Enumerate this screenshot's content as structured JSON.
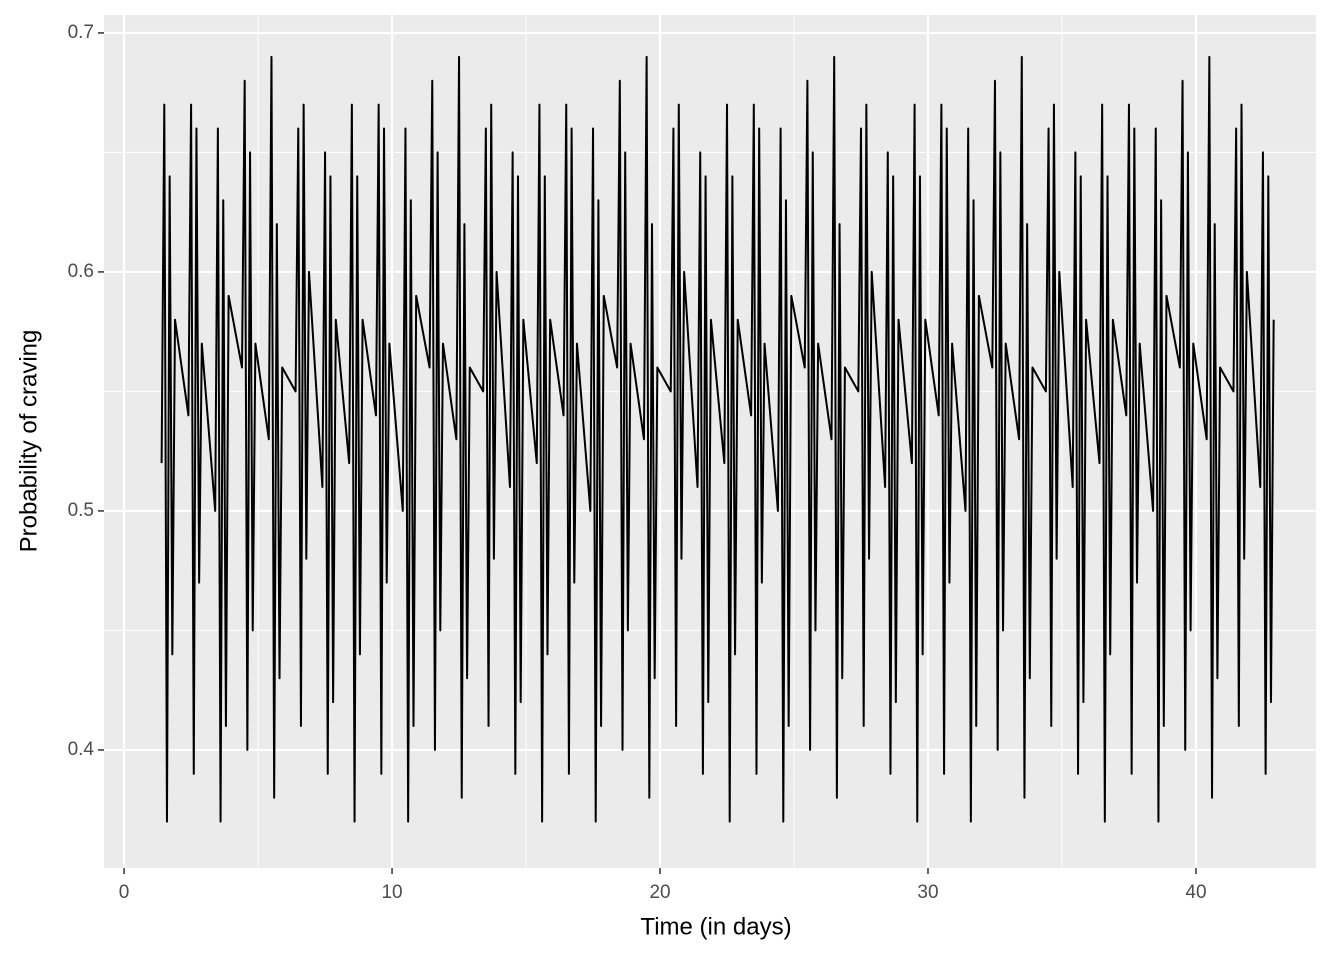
{
  "chart_data": {
    "type": "line",
    "x_label": "Time (in days)",
    "y_label": "Probability of craving",
    "color": "#000000",
    "grid": true,
    "xlim": [
      -0.75,
      44.48
    ],
    "ylim": [
      0.3506,
      0.7075
    ],
    "xticks": [
      0,
      10,
      20,
      30,
      40
    ],
    "xminor": [
      5,
      15,
      25,
      35
    ],
    "yticks": [
      0.4,
      0.5,
      0.6,
      0.7
    ],
    "yminor": [
      0.45,
      0.55,
      0.65
    ],
    "x": [
      1.4,
      1.5,
      1.6,
      1.7,
      1.8,
      1.9,
      2.4,
      2.5,
      2.6,
      2.7,
      2.8,
      2.9,
      3.4,
      3.5,
      3.6,
      3.7,
      3.8,
      3.9,
      4.4,
      4.5,
      4.6,
      4.7,
      4.8,
      4.9,
      5.4,
      5.5,
      5.6,
      5.7,
      5.8,
      5.9,
      6.4,
      6.5,
      6.6,
      6.7,
      6.8,
      6.9,
      7.4,
      7.5,
      7.6,
      7.7,
      7.8,
      7.9,
      8.4,
      8.5,
      8.6,
      8.7,
      8.8,
      8.9,
      9.4,
      9.5,
      9.6,
      9.7,
      9.8,
      9.9,
      10.4,
      10.5,
      10.6,
      10.7,
      10.8,
      10.9,
      11.4,
      11.5,
      11.6,
      11.7,
      11.8,
      11.9,
      12.4,
      12.5,
      12.6,
      12.7,
      12.8,
      12.9,
      13.4,
      13.5,
      13.6,
      13.7,
      13.8,
      13.9,
      14.4,
      14.5,
      14.6,
      14.7,
      14.8,
      14.9,
      15.4,
      15.5,
      15.6,
      15.7,
      15.8,
      15.9,
      16.4,
      16.5,
      16.6,
      16.7,
      16.8,
      16.9,
      17.4,
      17.5,
      17.6,
      17.7,
      17.8,
      17.9,
      18.4,
      18.5,
      18.6,
      18.7,
      18.8,
      18.9,
      19.4,
      19.5,
      19.6,
      19.7,
      19.8,
      19.9,
      20.4,
      20.5,
      20.6,
      20.7,
      20.8,
      20.9,
      21.4,
      21.5,
      21.6,
      21.7,
      21.8,
      21.9,
      22.4,
      22.5,
      22.6,
      22.7,
      22.8,
      22.9,
      23.4,
      23.5,
      23.6,
      23.7,
      23.8,
      23.9,
      24.4,
      24.5,
      24.6,
      24.7,
      24.8,
      24.9,
      25.4,
      25.5,
      25.6,
      25.7,
      25.8,
      25.9,
      26.4,
      26.5,
      26.6,
      26.7,
      26.8,
      26.9,
      27.4,
      27.5,
      27.6,
      27.7,
      27.8,
      27.9,
      28.4,
      28.5,
      28.6,
      28.7,
      28.8,
      28.9,
      29.4,
      29.5,
      29.6,
      29.7,
      29.8,
      29.9,
      30.4,
      30.5,
      30.6,
      30.7,
      30.8,
      30.9,
      31.4,
      31.5,
      31.6,
      31.7,
      31.8,
      31.9,
      32.4,
      32.5,
      32.6,
      32.7,
      32.8,
      32.9,
      33.4,
      33.5,
      33.6,
      33.7,
      33.8,
      33.9,
      34.4,
      34.5,
      34.6,
      34.7,
      34.8,
      34.9,
      35.4,
      35.5,
      35.6,
      35.7,
      35.8,
      35.9,
      36.4,
      36.5,
      36.6,
      36.7,
      36.8,
      36.9,
      37.4,
      37.5,
      37.6,
      37.7,
      37.8,
      37.9,
      38.4,
      38.5,
      38.6,
      38.7,
      38.8,
      38.9,
      39.4,
      39.5,
      39.6,
      39.7,
      39.8,
      39.9,
      40.4,
      40.5,
      40.6,
      40.7,
      40.8,
      40.9,
      41.4,
      41.5,
      41.6,
      41.7,
      41.8,
      41.9,
      42.4,
      42.5,
      42.6,
      42.7,
      42.8,
      42.9
    ],
    "values": [
      0.52,
      0.67,
      0.37,
      0.64,
      0.44,
      0.58,
      0.54,
      0.67,
      0.39,
      0.66,
      0.47,
      0.57,
      0.5,
      0.66,
      0.37,
      0.63,
      0.41,
      0.59,
      0.56,
      0.68,
      0.4,
      0.65,
      0.45,
      0.57,
      0.53,
      0.69,
      0.38,
      0.62,
      0.43,
      0.56,
      0.55,
      0.66,
      0.41,
      0.67,
      0.48,
      0.6,
      0.51,
      0.65,
      0.39,
      0.64,
      0.42,
      0.58,
      0.52,
      0.67,
      0.37,
      0.64,
      0.44,
      0.58,
      0.54,
      0.67,
      0.39,
      0.66,
      0.47,
      0.57,
      0.5,
      0.66,
      0.37,
      0.63,
      0.41,
      0.59,
      0.56,
      0.68,
      0.4,
      0.65,
      0.45,
      0.57,
      0.53,
      0.69,
      0.38,
      0.62,
      0.43,
      0.56,
      0.55,
      0.66,
      0.41,
      0.67,
      0.48,
      0.6,
      0.51,
      0.65,
      0.39,
      0.64,
      0.42,
      0.58,
      0.52,
      0.67,
      0.37,
      0.64,
      0.44,
      0.58,
      0.54,
      0.67,
      0.39,
      0.66,
      0.47,
      0.57,
      0.5,
      0.66,
      0.37,
      0.63,
      0.41,
      0.59,
      0.56,
      0.68,
      0.4,
      0.65,
      0.45,
      0.57,
      0.53,
      0.69,
      0.38,
      0.62,
      0.43,
      0.56,
      0.55,
      0.66,
      0.41,
      0.67,
      0.48,
      0.6,
      0.51,
      0.65,
      0.39,
      0.64,
      0.42,
      0.58,
      0.52,
      0.67,
      0.37,
      0.64,
      0.44,
      0.58,
      0.54,
      0.67,
      0.39,
      0.66,
      0.47,
      0.57,
      0.5,
      0.66,
      0.37,
      0.63,
      0.41,
      0.59,
      0.56,
      0.68,
      0.4,
      0.65,
      0.45,
      0.57,
      0.53,
      0.69,
      0.38,
      0.62,
      0.43,
      0.56,
      0.55,
      0.66,
      0.41,
      0.67,
      0.48,
      0.6,
      0.51,
      0.65,
      0.39,
      0.64,
      0.42,
      0.58,
      0.52,
      0.67,
      0.37,
      0.64,
      0.44,
      0.58,
      0.54,
      0.67,
      0.39,
      0.66,
      0.47,
      0.57,
      0.5,
      0.66,
      0.37,
      0.63,
      0.41,
      0.59,
      0.56,
      0.68,
      0.4,
      0.65,
      0.45,
      0.57,
      0.53,
      0.69,
      0.38,
      0.62,
      0.43,
      0.56,
      0.55,
      0.66,
      0.41,
      0.67,
      0.48,
      0.6,
      0.51,
      0.65,
      0.39,
      0.64,
      0.42,
      0.58,
      0.52,
      0.67,
      0.37,
      0.64,
      0.44,
      0.58,
      0.54,
      0.67,
      0.39,
      0.66,
      0.47,
      0.57,
      0.5,
      0.66,
      0.37,
      0.63,
      0.41,
      0.59,
      0.56,
      0.68,
      0.4,
      0.65,
      0.45,
      0.57,
      0.53,
      0.69,
      0.38,
      0.62,
      0.43,
      0.56,
      0.55,
      0.66,
      0.41,
      0.67,
      0.48,
      0.6,
      0.51,
      0.65,
      0.39,
      0.64,
      0.42,
      0.58
    ]
  }
}
